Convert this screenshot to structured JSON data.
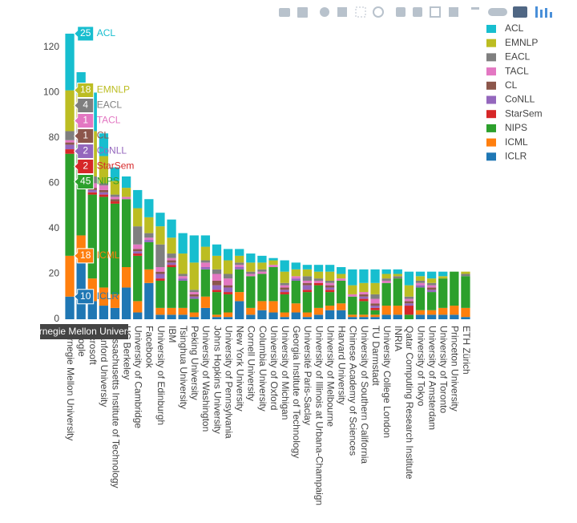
{
  "chart_data": {
    "type": "stacked_bar",
    "categories": [
      "Carnegie Mellon University",
      "Google",
      "Microsoft",
      "Stanford University",
      "Massachusetts Institute of Technology",
      "UC Berkeley",
      "University of Cambridge",
      "Facebook",
      "University of Edinburgh",
      "IBM",
      "Tsinghua University",
      "Peking University",
      "University of Washington",
      "Johns Hopkins University",
      "University of Pennsylvania",
      "New York University",
      "Cornell University",
      "Columbia University",
      "University of Oxford",
      "University of Michigan",
      "Georgia Institute of Technology",
      "Université Paris-Saclay",
      "University of Illinois at Urbana-Champaign",
      "University of Melbourne",
      "Harvard University",
      "Chinese Academy of Sciences",
      "University of Southern California",
      "TU Darmstadt",
      "University College London",
      "INRIA",
      "Qatar Computing Research Institute",
      "University of Tokyo",
      "University of Amsterdam",
      "University of Toronto",
      "Princeton University",
      "ETH Zürich"
    ],
    "series": [
      {
        "name": "ACL",
        "color": "#17becf",
        "values": [
          25,
          10,
          17,
          10,
          6,
          5,
          8,
          8,
          6,
          8,
          9,
          12,
          5,
          5,
          5,
          3,
          4,
          3,
          1,
          5,
          3,
          2,
          3,
          3,
          3,
          7,
          6,
          6,
          2,
          2,
          6,
          2,
          3,
          2,
          0,
          0
        ]
      },
      {
        "name": "EMNLP",
        "color": "#bcbd22",
        "values": [
          18,
          15,
          20,
          12,
          6,
          4,
          8,
          7,
          8,
          7,
          9,
          12,
          6,
          6,
          6,
          3,
          4,
          3,
          2,
          5,
          3,
          3,
          3,
          4,
          2,
          4,
          4,
          5,
          2,
          1,
          5,
          2,
          2,
          1,
          0,
          1
        ]
      },
      {
        "name": "EACL",
        "color": "#7f7f7f",
        "values": [
          4,
          2,
          3,
          1,
          1,
          0,
          8,
          2,
          10,
          2,
          1,
          1,
          1,
          2,
          2,
          1,
          1,
          1,
          0,
          1,
          0,
          2,
          1,
          1,
          0,
          0,
          0,
          2,
          1,
          1,
          1,
          1,
          1,
          0,
          0,
          1
        ]
      },
      {
        "name": "TACL",
        "color": "#e377c2",
        "values": [
          1,
          2,
          2,
          2,
          1,
          1,
          2,
          1,
          2,
          1,
          1,
          1,
          2,
          3,
          3,
          1,
          1,
          1,
          1,
          1,
          1,
          1,
          1,
          1,
          1,
          1,
          1,
          2,
          1,
          0,
          1,
          1,
          1,
          0,
          0,
          0
        ]
      },
      {
        "name": "CL",
        "color": "#8c564b",
        "values": [
          1,
          1,
          1,
          1,
          1,
          0,
          1,
          0,
          1,
          1,
          0,
          1,
          0,
          2,
          1,
          0,
          0,
          0,
          0,
          1,
          0,
          1,
          0,
          1,
          0,
          0,
          1,
          1,
          0,
          0,
          1,
          0,
          1,
          0,
          0,
          0
        ]
      },
      {
        "name": "CoNLL",
        "color": "#9467bd",
        "values": [
          2,
          1,
          1,
          1,
          0,
          0,
          1,
          1,
          2,
          1,
          1,
          1,
          1,
          2,
          2,
          1,
          0,
          0,
          0,
          1,
          1,
          2,
          0,
          1,
          0,
          0,
          1,
          1,
          0,
          0,
          1,
          1,
          1,
          0,
          0,
          0
        ]
      },
      {
        "name": "StarSem",
        "color": "#d62728",
        "values": [
          2,
          1,
          1,
          1,
          1,
          0,
          1,
          0,
          1,
          1,
          0,
          0,
          0,
          1,
          1,
          0,
          0,
          0,
          0,
          1,
          0,
          1,
          1,
          1,
          0,
          0,
          1,
          1,
          0,
          0,
          4,
          0,
          0,
          0,
          0,
          0
        ]
      },
      {
        "name": "NIPS",
        "color": "#2ca02c",
        "values": [
          45,
          40,
          37,
          40,
          40,
          30,
          20,
          12,
          12,
          18,
          12,
          6,
          12,
          10,
          8,
          10,
          14,
          12,
          15,
          8,
          10,
          9,
          10,
          6,
          10,
          8,
          6,
          2,
          10,
          12,
          2,
          10,
          8,
          13,
          15,
          14
        ]
      },
      {
        "name": "ICML",
        "color": "#ff7f0e",
        "values": [
          18,
          12,
          10,
          8,
          6,
          9,
          5,
          6,
          3,
          3,
          3,
          2,
          5,
          1,
          2,
          4,
          3,
          4,
          5,
          2,
          4,
          2,
          3,
          2,
          3,
          1,
          1,
          1,
          4,
          4,
          0,
          2,
          2,
          3,
          4,
          4
        ]
      },
      {
        "name": "ICLR",
        "color": "#1f77b4",
        "values": [
          10,
          25,
          8,
          6,
          5,
          14,
          3,
          16,
          2,
          2,
          2,
          1,
          5,
          1,
          1,
          8,
          2,
          4,
          3,
          1,
          3,
          1,
          2,
          4,
          4,
          1,
          1,
          1,
          2,
          2,
          0,
          2,
          2,
          2,
          2,
          1
        ]
      }
    ],
    "ylim": [
      0,
      132
    ],
    "yticks": [
      0,
      20,
      40,
      60,
      80,
      100,
      120
    ],
    "grid": false,
    "legend": "right"
  }
}
